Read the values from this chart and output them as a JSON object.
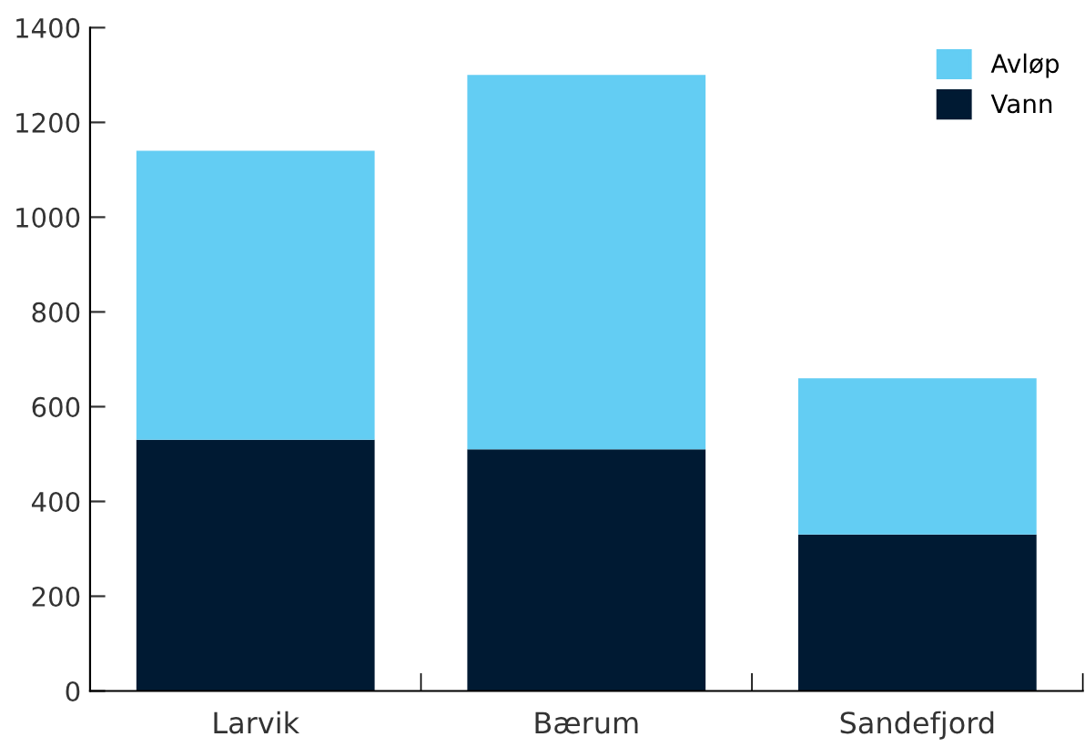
{
  "chart_data": {
    "type": "bar",
    "stacked": true,
    "categories": [
      "Larvik",
      "Bærum",
      "Sandefjord"
    ],
    "series": [
      {
        "name": "Vann",
        "color": "#001a33",
        "values": [
          530,
          510,
          330
        ]
      },
      {
        "name": "Avløp",
        "color": "#63cdf3",
        "values": [
          610,
          790,
          330
        ]
      }
    ],
    "ylim": [
      0,
      1400
    ],
    "yticks": [
      0,
      200,
      400,
      600,
      800,
      1000,
      1200,
      1400
    ],
    "grid": false,
    "legend": "top right"
  }
}
